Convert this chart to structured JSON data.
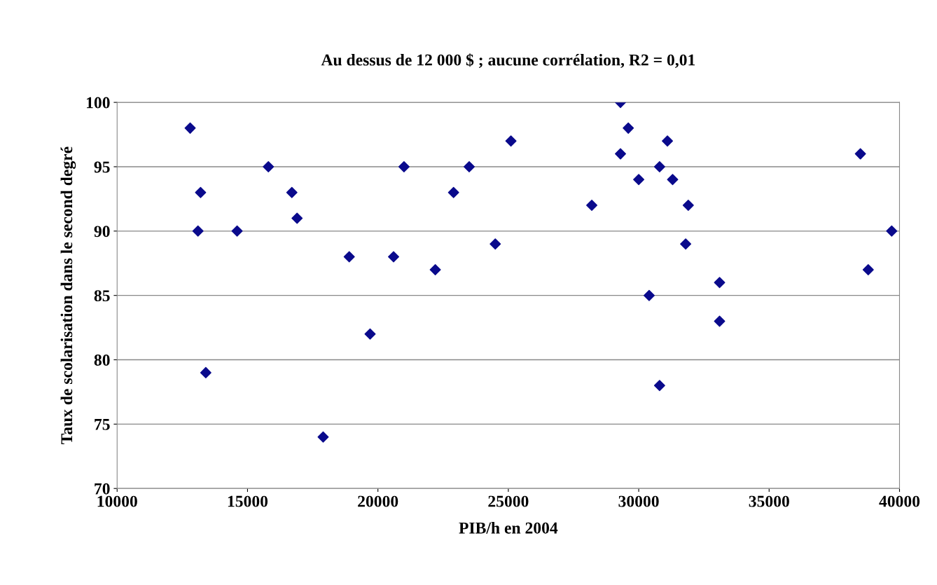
{
  "chart_data": {
    "type": "scatter",
    "title": "Au dessus de 12 000 $ ; aucune corrélation, R2 = 0,01",
    "xlabel": "PIB/h en 2004",
    "ylabel": "Taux de scolarisation dans le second degré",
    "series": [
      {
        "color": "#0a0a8c",
        "x": [
          12800,
          13200,
          13100,
          13400,
          14600,
          15800,
          16700,
          16900,
          17900,
          18900,
          19700,
          20600,
          21000,
          22200,
          22900,
          23500,
          24500,
          25100,
          28200,
          29300,
          29300,
          29600,
          30000,
          30400,
          30800,
          30800,
          31100,
          31300,
          31900,
          31800,
          33100,
          33100,
          38500,
          38800,
          39700
        ],
        "values": [
          98,
          93,
          90,
          79,
          90,
          95,
          93,
          91,
          74,
          88,
          82,
          88,
          95,
          87,
          93,
          95,
          89,
          97,
          92,
          100,
          96,
          98,
          94,
          85,
          95,
          78,
          97,
          94,
          92,
          89,
          86,
          83,
          96,
          87,
          90
        ]
      }
    ],
    "xlim": [
      10000,
      40000
    ],
    "xticks": [
      10000,
      15000,
      20000,
      25000,
      30000,
      35000,
      40000
    ],
    "ylim": [
      70,
      100
    ],
    "yticks": [
      70,
      75,
      80,
      85,
      90,
      95,
      100
    ],
    "grid": "y",
    "marker": "diamond",
    "legend": false
  }
}
